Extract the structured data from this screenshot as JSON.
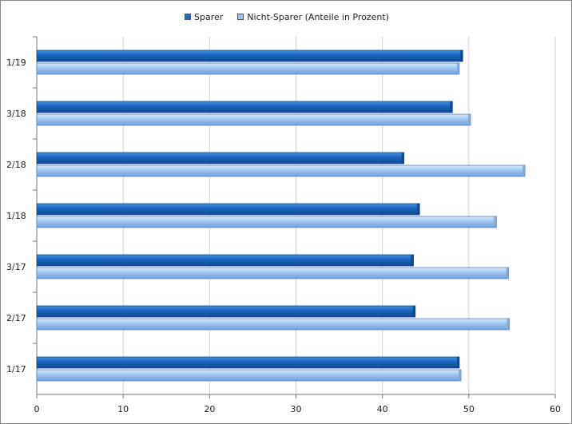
{
  "chart_data": {
    "type": "bar",
    "orientation": "horizontal",
    "categories": [
      "1/19",
      "3/18",
      "2/18",
      "1/18",
      "3/17",
      "2/17",
      "1/17"
    ],
    "series": [
      {
        "name": "Sparer",
        "values": [
          49.3,
          48.1,
          42.5,
          44.3,
          43.6,
          43.8,
          48.9
        ],
        "color": "#1c6ec9"
      },
      {
        "name": "Nicht-Sparer (Anteile in Prozent)",
        "values": [
          48.9,
          50.2,
          56.5,
          53.2,
          54.6,
          54.7,
          49.1
        ],
        "color": "#9ec4ee"
      }
    ],
    "x_ticks": [
      "0",
      "10",
      "20",
      "30",
      "40",
      "50",
      "60"
    ],
    "xlim": [
      0,
      60
    ],
    "grid": "vertical",
    "legend_position": "top"
  }
}
